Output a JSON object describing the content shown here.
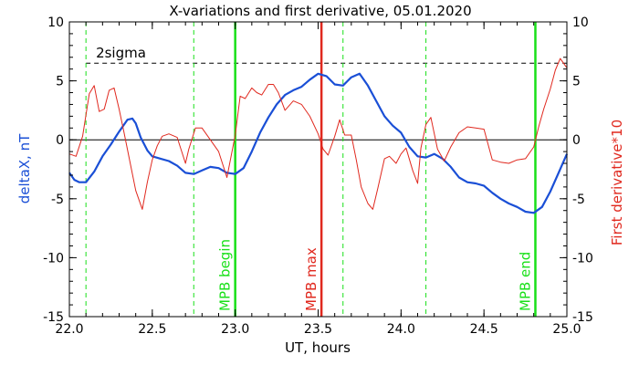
{
  "chart_data": {
    "type": "line",
    "title": "X-variations and first derivative, 05.01.2020",
    "xlabel": "UT, hours",
    "ylabel_left": "deltaX, nT",
    "ylabel_right": "First derivative*10",
    "xlim": [
      22.0,
      25.0
    ],
    "ylim_left": [
      -15,
      10
    ],
    "ylim_right": [
      -15,
      10
    ],
    "x_ticks": [
      "22.0",
      "22.5",
      "23.0",
      "23.5",
      "24.0",
      "24.5",
      "25.0"
    ],
    "x_tick_values": [
      22.0,
      22.5,
      23.0,
      23.5,
      24.0,
      24.5,
      25.0
    ],
    "y_ticks_left": [
      "10",
      "5",
      "0",
      "-5",
      "-10",
      "-15"
    ],
    "y_ticks_right": [
      "10",
      "5",
      "0",
      "-5",
      "-10",
      "-15"
    ],
    "y_tick_values": [
      10,
      5,
      0,
      -5,
      -10,
      -15
    ],
    "grid": false,
    "colors": {
      "deltaX": "#1a4fd6",
      "derivative": "#e0281e",
      "mpb_edges": "#19e019",
      "mpb_max": "#e0281e",
      "dashed_green": "#19e019",
      "reference": "#000000"
    },
    "series": [
      {
        "values_key": "deltaX",
        "x": [
          22.0,
          22.03,
          22.06,
          22.1,
          22.15,
          22.2,
          22.25,
          22.3,
          22.35,
          22.38,
          22.4,
          22.43,
          22.47,
          22.5,
          22.55,
          22.6,
          22.65,
          22.7,
          22.75,
          22.8,
          22.85,
          22.9,
          22.95,
          23.0,
          23.05,
          23.1,
          23.15,
          23.2,
          23.25,
          23.3,
          23.35,
          23.4,
          23.45,
          23.5,
          23.55,
          23.6,
          23.65,
          23.7,
          23.75,
          23.8,
          23.85,
          23.9,
          23.95,
          24.0,
          24.05,
          24.1,
          24.15,
          24.2,
          24.25,
          24.3,
          24.35,
          24.4,
          24.45,
          24.5,
          24.55,
          24.6,
          24.65,
          24.7,
          24.75,
          24.8,
          24.85,
          24.9,
          24.95,
          25.0
        ],
        "values": [
          -2.8,
          -3.4,
          -3.6,
          -3.6,
          -2.7,
          -1.4,
          -0.4,
          0.7,
          1.7,
          1.8,
          1.4,
          0.2,
          -0.9,
          -1.4,
          -1.6,
          -1.8,
          -2.2,
          -2.8,
          -2.9,
          -2.6,
          -2.3,
          -2.4,
          -2.8,
          -2.9,
          -2.4,
          -1.0,
          0.6,
          1.9,
          3.0,
          3.8,
          4.2,
          4.5,
          5.1,
          5.6,
          5.4,
          4.7,
          4.6,
          5.3,
          5.6,
          4.6,
          3.3,
          2.0,
          1.2,
          0.6,
          -0.6,
          -1.4,
          -1.5,
          -1.2,
          -1.6,
          -2.3,
          -3.2,
          -3.6,
          -3.7,
          -3.9,
          -4.5,
          -5.0,
          -5.4,
          -5.7,
          -6.1,
          -6.2,
          -5.7,
          -4.4,
          -2.8,
          -1.2
        ]
      },
      {
        "values_key": "derivative",
        "x": [
          22.0,
          22.04,
          22.08,
          22.12,
          22.15,
          22.18,
          22.21,
          22.24,
          22.27,
          22.3,
          22.33,
          22.36,
          22.4,
          22.44,
          22.47,
          22.5,
          22.53,
          22.56,
          22.6,
          22.65,
          22.7,
          22.72,
          22.76,
          22.8,
          22.85,
          22.9,
          22.95,
          23.0,
          23.03,
          23.06,
          23.1,
          23.13,
          23.16,
          23.2,
          23.23,
          23.26,
          23.3,
          23.35,
          23.4,
          23.45,
          23.5,
          23.53,
          23.56,
          23.6,
          23.63,
          23.66,
          23.7,
          23.73,
          23.76,
          23.8,
          23.83,
          23.86,
          23.9,
          23.93,
          23.97,
          24.0,
          24.03,
          24.07,
          24.1,
          24.12,
          24.15,
          24.18,
          24.22,
          24.26,
          24.3,
          24.35,
          24.4,
          24.45,
          24.5,
          24.55,
          24.6,
          24.65,
          24.7,
          24.75,
          24.8,
          24.83,
          24.86,
          24.9,
          24.93,
          24.96,
          25.0
        ],
        "values": [
          -1.2,
          -1.4,
          0.3,
          3.9,
          4.6,
          2.4,
          2.6,
          4.2,
          4.4,
          2.6,
          0.6,
          -1.5,
          -4.3,
          -5.9,
          -3.6,
          -1.7,
          -0.5,
          0.3,
          0.5,
          0.2,
          -2.0,
          -0.8,
          1.0,
          1.0,
          0.0,
          -1.0,
          -3.2,
          0.4,
          3.7,
          3.5,
          4.4,
          4.0,
          3.8,
          4.7,
          4.7,
          4.0,
          2.5,
          3.3,
          3.0,
          2.0,
          0.5,
          -0.8,
          -1.3,
          0.3,
          1.7,
          0.4,
          0.4,
          -1.7,
          -4.0,
          -5.4,
          -5.9,
          -4.1,
          -1.6,
          -1.4,
          -2.0,
          -1.2,
          -0.7,
          -2.6,
          -3.7,
          -0.7,
          1.3,
          1.9,
          -0.8,
          -1.8,
          -0.6,
          0.6,
          1.1,
          1.0,
          0.9,
          -1.7,
          -1.9,
          -2.0,
          -1.7,
          -1.6,
          -0.6,
          1.1,
          2.6,
          4.3,
          5.9,
          6.9,
          6.1
        ]
      }
    ],
    "reference_lines": {
      "zero_line_y": 0,
      "sigma_line_y": 6.5,
      "sigma_label": "2sigma",
      "vertical_dashed_green_x": [
        22.1,
        22.75,
        23.65,
        24.15
      ],
      "mpb_begin_x": 23.0,
      "mpb_max_x": 23.52,
      "mpb_end_x": 24.81
    },
    "annotations": {
      "mpb_begin": "MPB begin",
      "mpb_max": "MPB max",
      "mpb_end": "MPB end"
    }
  }
}
